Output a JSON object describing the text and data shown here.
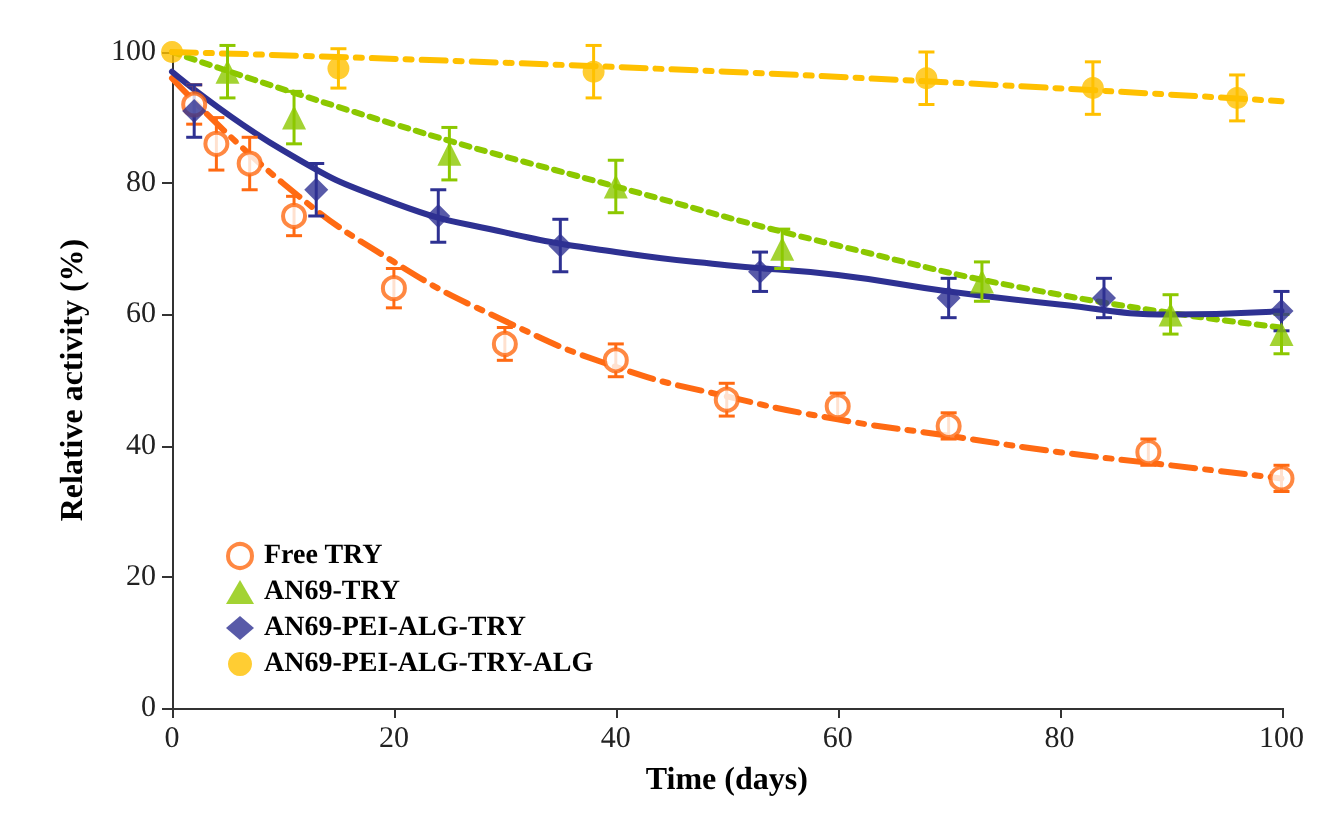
{
  "chart_data": {
    "type": "scatter",
    "xlabel": "Time (days)",
    "ylabel": "Relative activity (%)",
    "xlim": [
      0,
      100
    ],
    "ylim": [
      0,
      100
    ],
    "xticks": [
      0,
      20,
      40,
      60,
      80,
      100
    ],
    "yticks": [
      0,
      20,
      40,
      60,
      80,
      100
    ],
    "grid": false,
    "legend": "bottom left",
    "series": [
      {
        "name": "Free TRY",
        "color": "#ff6a13",
        "marker": "circle",
        "x": [
          2,
          4,
          7,
          11,
          20,
          30,
          40,
          50,
          60,
          70,
          88,
          100
        ],
        "values": [
          92,
          86,
          83,
          75,
          64,
          55.5,
          53,
          47,
          46,
          43,
          39,
          35
        ],
        "errors": [
          3,
          4,
          4,
          3,
          3,
          2.5,
          2.5,
          2.5,
          2,
          2,
          2,
          2
        ]
      },
      {
        "name": "AN69-TRY",
        "color": "#8cc800",
        "marker": "triangle",
        "x": [
          5,
          11,
          25,
          40,
          55,
          73,
          90,
          100
        ],
        "values": [
          97,
          90,
          84.5,
          79.5,
          70,
          65,
          60,
          57
        ],
        "errors": [
          4,
          4,
          4,
          4,
          3,
          3,
          3,
          3
        ]
      },
      {
        "name": "AN69-PEI-ALG-TRY",
        "color": "#2e3192",
        "marker": "diamond",
        "x": [
          2,
          13,
          24,
          35,
          53,
          70,
          84,
          100
        ],
        "values": [
          91,
          79,
          75,
          70.5,
          66.5,
          62.5,
          62.5,
          60.5
        ],
        "errors": [
          4,
          4,
          4,
          4,
          3,
          3,
          3,
          3
        ]
      },
      {
        "name": "AN69-PEI-ALG-TRY-ALG",
        "color": "#ffc000",
        "marker": "circle",
        "x": [
          0,
          15,
          38,
          68,
          83,
          96
        ],
        "values": [
          100,
          97.5,
          97,
          96,
          94.5,
          93
        ],
        "errors": [
          null,
          3,
          4,
          4,
          4,
          3.5
        ]
      },
      {
        "type": "line",
        "color": "#ff6a13",
        "line_style": "dashed",
        "x": [
          0,
          10,
          20,
          30,
          40,
          50,
          60,
          70,
          80,
          90,
          100
        ],
        "values": [
          96,
          80,
          68,
          59,
          52,
          47.5,
          44,
          41.5,
          39,
          37,
          35
        ]
      },
      {
        "type": "line",
        "color": "#8cc800",
        "line_style": "dotted",
        "x": [
          0,
          20,
          40,
          60,
          80,
          100
        ],
        "values": [
          100,
          89,
          79.5,
          70.5,
          63,
          58
        ]
      },
      {
        "type": "line",
        "color": "#2e3192",
        "line_style": "solid",
        "x": [
          0,
          10,
          20,
          30,
          40,
          50,
          60,
          70,
          80,
          90,
          100
        ],
        "values": [
          97,
          85,
          77,
          72.5,
          69.5,
          67.5,
          66,
          63.5,
          61.5,
          60,
          60.5
        ]
      },
      {
        "type": "line",
        "color": "#ffc000",
        "line_style": "dashed",
        "x": [
          0,
          50,
          100
        ],
        "values": [
          100,
          97,
          92.5
        ]
      }
    ]
  }
}
